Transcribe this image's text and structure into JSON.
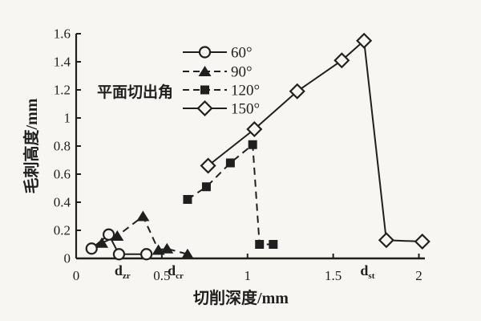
{
  "figure": {
    "kind": "scanned-line-chart",
    "background": "#f7f6f2",
    "ink": "#1f1f1f"
  },
  "chart_data": {
    "type": "line",
    "title": "",
    "xlabel": "切削深度/mm",
    "ylabel": "毛刺高度/mm",
    "xlim": [
      0,
      2.035
    ],
    "ylim": [
      0,
      1.6
    ],
    "grid": false,
    "x_ticks": [
      {
        "value": 0,
        "label": "0"
      },
      {
        "value": 0.5,
        "label": "0.5"
      },
      {
        "value": 1,
        "label": "1"
      },
      {
        "value": 1.5,
        "label": "1.5"
      },
      {
        "value": 2,
        "label": "2"
      }
    ],
    "x_critical_labels": [
      {
        "value": 0.27,
        "base": "d",
        "sub": "zr"
      },
      {
        "value": 0.58,
        "base": "d",
        "sub": "cr"
      },
      {
        "value": 1.7,
        "base": "d",
        "sub": "st"
      }
    ],
    "y_ticks": [
      {
        "value": 0,
        "label": "0"
      },
      {
        "value": 0.2,
        "label": "0.2"
      },
      {
        "value": 0.4,
        "label": "0.4"
      },
      {
        "value": 0.6,
        "label": "0.6"
      },
      {
        "value": 0.8,
        "label": "0.8"
      },
      {
        "value": 1,
        "label": "1"
      },
      {
        "value": 1.2,
        "label": "1.2"
      },
      {
        "value": 1.4,
        "label": "1.4"
      },
      {
        "value": 1.6,
        "label": "1.6"
      }
    ],
    "legend": {
      "title": "平面切出角",
      "position": "inside-top-left"
    },
    "series": [
      {
        "name": "60°",
        "line": "solid",
        "marker": "circle-open",
        "points": [
          [
            0.09,
            0.07
          ],
          [
            0.19,
            0.17
          ],
          [
            0.25,
            0.03
          ],
          [
            0.41,
            0.03
          ]
        ]
      },
      {
        "name": "90°",
        "line": "dashed",
        "marker": "triangle-filled",
        "points": [
          [
            0.15,
            0.11
          ],
          [
            0.24,
            0.16
          ],
          [
            0.39,
            0.3
          ],
          [
            0.48,
            0.06
          ],
          [
            0.53,
            0.07
          ],
          [
            0.65,
            0.03
          ]
        ]
      },
      {
        "name": "120°",
        "line": "dashed",
        "marker": "square-filled",
        "points": [
          [
            0.65,
            0.42
          ],
          [
            0.76,
            0.51
          ],
          [
            0.9,
            0.68
          ],
          [
            1.03,
            0.81
          ],
          [
            1.07,
            0.1
          ],
          [
            1.15,
            0.1
          ]
        ]
      },
      {
        "name": "150°",
        "line": "solid",
        "marker": "diamond-open",
        "points": [
          [
            0.77,
            0.66
          ],
          [
            1.04,
            0.92
          ],
          [
            1.29,
            1.19
          ],
          [
            1.55,
            1.41
          ],
          [
            1.68,
            1.55
          ],
          [
            1.81,
            0.13
          ],
          [
            2.02,
            0.12
          ]
        ]
      }
    ]
  }
}
